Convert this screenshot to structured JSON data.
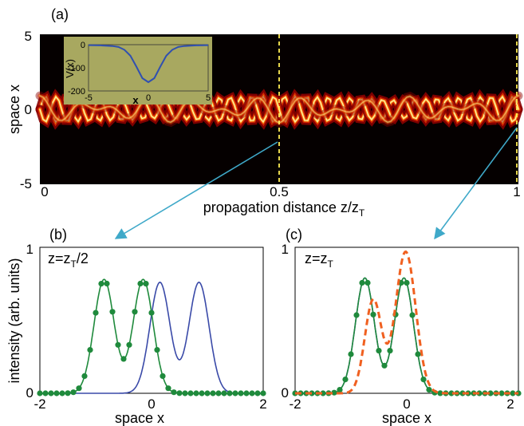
{
  "chart_data": [
    {
      "panel": "(a)",
      "type": "heatmap",
      "xlabel": "propagation distance z/z",
      "xlabel_sub": "T",
      "ylabel": "space x",
      "xlim": [
        0,
        1
      ],
      "ylim": [
        -5,
        5
      ],
      "xticks": [
        "0",
        "0.5",
        "1"
      ],
      "yticks": [
        "5",
        "0",
        "-5"
      ],
      "colormap": "hot",
      "marker_lines": [
        0.5,
        1.0
      ],
      "marker_color": "#ffee55",
      "inset": {
        "type": "line",
        "xlabel": "x",
        "ylabel": "V(x)",
        "xlim": [
          -5,
          5
        ],
        "ylim": [
          -200,
          0
        ],
        "xticks": [
          "-5",
          "0",
          "5"
        ],
        "yticks": [
          "0",
          "-100",
          "-200"
        ],
        "x": [
          -5,
          -4,
          -3,
          -2.5,
          -2,
          -1.5,
          -1,
          -0.5,
          0,
          0.5,
          1,
          1.5,
          2,
          2.5,
          3,
          4,
          5
        ],
        "y": [
          -2,
          -3,
          -6,
          -10,
          -22,
          -48,
          -95,
          -145,
          -162,
          -145,
          -95,
          -48,
          -22,
          -10,
          -6,
          -3,
          -2
        ],
        "color": "#3050b0",
        "background": "#a8a860"
      }
    },
    {
      "panel": "(b)",
      "type": "line",
      "annotation": "z=z",
      "annotation_sub": "T",
      "annotation_tail": "/2",
      "xlabel": "space x",
      "ylabel": "intensity (arb. units)",
      "xlim": [
        -2,
        2
      ],
      "ylim": [
        0,
        1
      ],
      "xticks": [
        "-2",
        "0",
        "2"
      ],
      "yticks": [
        "1",
        "0"
      ],
      "series": [
        {
          "style": "line",
          "color": "#3a4aa8",
          "peaks": [
            {
              "center": 0.15,
              "width": 0.18,
              "height": 0.76
            },
            {
              "center": 0.85,
              "width": 0.18,
              "height": 0.76
            }
          ]
        },
        {
          "style": "line-markers",
          "color": "#1f8a3c",
          "peaks": [
            {
              "center": -0.85,
              "width": 0.18,
              "height": 0.78
            },
            {
              "center": -0.15,
              "width": 0.18,
              "height": 0.78
            }
          ]
        }
      ]
    },
    {
      "panel": "(c)",
      "type": "line",
      "annotation": "z=z",
      "annotation_sub": "T",
      "annotation_tail": "",
      "xlabel": "space x",
      "ylabel": "",
      "xlim": [
        -2,
        2
      ],
      "ylim": [
        0,
        1
      ],
      "xticks": [
        "-2",
        "0",
        "2"
      ],
      "yticks": [
        "1",
        "0"
      ],
      "series": [
        {
          "style": "line",
          "color": "#3a4aa8",
          "peaks": [
            {
              "center": -0.75,
              "width": 0.17,
              "height": 0.79
            },
            {
              "center": -0.05,
              "width": 0.17,
              "height": 0.79
            }
          ]
        },
        {
          "style": "line-markers",
          "color": "#1f8a3c",
          "peaks": [
            {
              "center": -0.75,
              "width": 0.17,
              "height": 0.79
            },
            {
              "center": -0.05,
              "width": 0.17,
              "height": 0.79
            }
          ]
        },
        {
          "style": "dashed",
          "color": "#f06020",
          "peaks": [
            {
              "center": -0.6,
              "width": 0.15,
              "height": 0.64
            },
            {
              "center": -0.02,
              "width": 0.18,
              "height": 0.97
            }
          ]
        }
      ]
    }
  ]
}
